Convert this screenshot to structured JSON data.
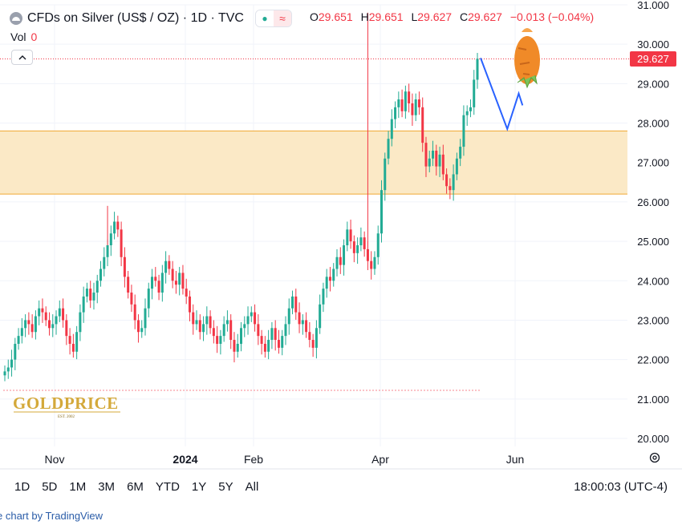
{
  "header": {
    "symbol_title": "CFDs on Silver (US$ / OZ) · 1D · TVC",
    "ohlc": {
      "o_label": "O",
      "o_value": "29.651",
      "h_label": "H",
      "h_value": "29.651",
      "l_label": "L",
      "l_value": "29.627",
      "c_label": "C",
      "c_value": "29.627",
      "change": "−0.013 (−0.04%)"
    },
    "vol_label": "Vol",
    "vol_value": "0",
    "collapse_symbol": "^",
    "market_status_icon": "dot-icon",
    "wave_icon": "≈"
  },
  "price_tag": "29.627",
  "watermark": {
    "brand": "GOLDPRICE",
    "subtitle": "EST. 2002"
  },
  "time_ranges": [
    "1D",
    "5D",
    "1M",
    "3M",
    "6M",
    "YTD",
    "1Y",
    "5Y",
    "All"
  ],
  "clock": "18:00:03 (UTC-4)",
  "footer": "e chart by TradingView",
  "colors": {
    "up": "#22ab94",
    "down": "#f23645",
    "zone_fill": "#fbe9c6",
    "zone_line": "#f0a830",
    "projection": "#2962ff"
  },
  "chart_data": {
    "type": "candlestick",
    "title": "CFDs on Silver (US$ / OZ)",
    "interval": "1D",
    "ylim": [
      20.0,
      31.0
    ],
    "y_ticks": [
      "31.000",
      "30.000",
      "29.000",
      "28.000",
      "27.000",
      "26.000",
      "25.000",
      "24.000",
      "23.000",
      "22.000",
      "21.000",
      "20.000"
    ],
    "x_ticks": [
      "Nov",
      "2024",
      "Feb",
      "Apr",
      "Jun"
    ],
    "last_price": 29.627,
    "zone": {
      "low": 26.2,
      "high": 27.8
    },
    "projection": [
      [
        0,
        29.65
      ],
      [
        7,
        27.85
      ],
      [
        10,
        28.75
      ],
      [
        11,
        28.45
      ]
    ],
    "close_series": [
      21.7,
      21.8,
      22.0,
      22.4,
      22.6,
      22.8,
      23.0,
      22.9,
      22.7,
      23.1,
      23.3,
      23.2,
      23.0,
      22.8,
      22.9,
      23.1,
      23.3,
      23.0,
      22.6,
      22.4,
      22.2,
      22.7,
      23.2,
      23.6,
      23.8,
      23.5,
      23.7,
      24.0,
      24.3,
      24.6,
      24.9,
      25.2,
      25.5,
      25.3,
      24.6,
      24.1,
      23.7,
      23.4,
      23.0,
      22.7,
      22.8,
      23.3,
      23.8,
      24.1,
      24.0,
      23.7,
      24.2,
      24.5,
      24.3,
      24.0,
      23.9,
      24.2,
      23.8,
      23.6,
      23.2,
      22.9,
      23.0,
      22.7,
      22.9,
      23.1,
      22.8,
      22.6,
      22.4,
      22.6,
      22.9,
      23.0,
      22.5,
      22.2,
      22.4,
      22.8,
      22.9,
      23.1,
      23.2,
      22.9,
      22.6,
      22.4,
      22.2,
      22.5,
      22.8,
      22.5,
      22.3,
      22.6,
      22.9,
      23.3,
      23.6,
      23.2,
      22.9,
      23.0,
      22.7,
      22.5,
      22.3,
      22.8,
      23.4,
      23.8,
      24.1,
      24.0,
      24.3,
      24.6,
      24.4,
      24.9,
      25.3,
      25.0,
      24.7,
      24.9,
      25.1,
      24.8,
      24.5,
      24.3,
      24.6,
      25.2,
      26.3,
      27.1,
      27.6,
      28.1,
      28.4,
      28.6,
      28.3,
      28.8,
      28.5,
      28.2,
      28.6,
      28.4,
      27.5,
      26.9,
      27.1,
      27.3,
      26.9,
      27.2,
      26.7,
      26.4,
      26.3,
      26.7,
      27.1,
      27.4,
      28.2,
      28.3,
      28.4,
      29.1,
      29.63
    ]
  }
}
